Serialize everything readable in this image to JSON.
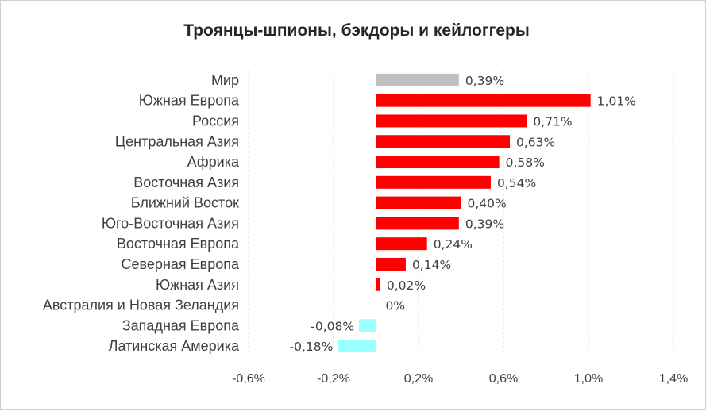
{
  "chart_data": {
    "type": "bar",
    "orientation": "horizontal",
    "title": "Троянцы-шпионы, бэкдоры и кейлоггеры",
    "categories": [
      "Мир",
      "Южная Европа",
      "Россия",
      "Центральная Азия",
      "Африка",
      "Восточная Азия",
      "Ближний Восток",
      "Юго-Восточная Азия",
      "Восточная Европа",
      "Северная Европа",
      "Южная Азия",
      "Австралия и Новая Зеландия",
      "Западная Европа",
      "Латинская Америка"
    ],
    "values": [
      0.39,
      1.01,
      0.71,
      0.63,
      0.58,
      0.54,
      0.4,
      0.39,
      0.24,
      0.14,
      0.02,
      0,
      -0.08,
      -0.18
    ],
    "value_labels": [
      "0,39%",
      "1,01%",
      "0,71%",
      "0,63%",
      "0,58%",
      "0,54%",
      "0,40%",
      "0,39%",
      "0,24%",
      "0,14%",
      "0,02%",
      "0%",
      "-0,08%",
      "-0,18%"
    ],
    "xlim": [
      -0.6,
      1.4
    ],
    "x_ticks": [
      -0.6,
      -0.4,
      -0.2,
      0,
      0.2,
      0.4,
      0.6,
      0.8,
      1.0,
      1.2,
      1.4
    ],
    "x_tick_labels": [
      "-0,6%",
      "-0,2%",
      "0,2%",
      "0,6%",
      "1,0%",
      "1,4%"
    ],
    "x_tick_label_values": [
      -0.6,
      -0.2,
      0.2,
      0.6,
      1.0,
      1.4
    ],
    "grid": true,
    "legend": "none",
    "colors": {
      "world": "#bfbfbf",
      "positive": "#ff0000",
      "negative": "#99ffff"
    }
  }
}
